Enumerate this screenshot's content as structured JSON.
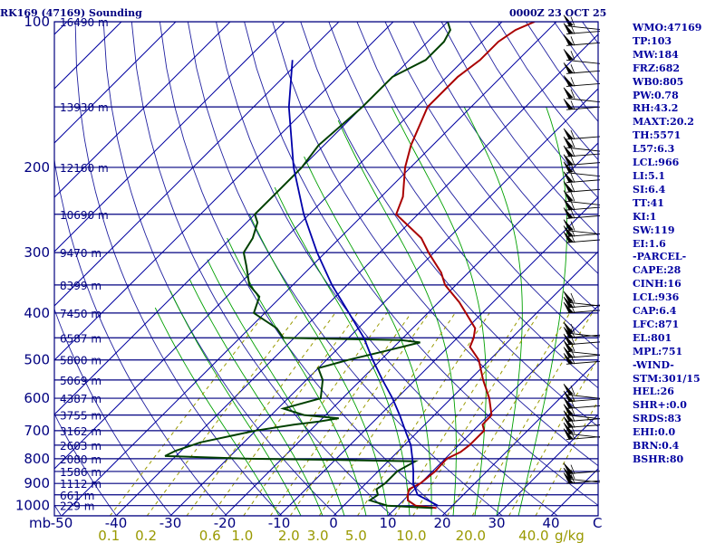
{
  "header": {
    "station": "RK169 (47169) Sounding",
    "time": "0000Z 23 OCT 25"
  },
  "indices": [
    "WMO:47169",
    "TP:103",
    "MW:184",
    "FRZ:682",
    "WB0:805",
    "PW:0.78",
    "RH:43.2",
    "MAXT:20.2",
    "TH:5571",
    "L57:6.3",
    "LCL:966",
    "LI:5.1",
    "SI:6.4",
    "TT:41",
    "KI:1",
    "SW:119",
    "EI:1.6",
    "-PARCEL-",
    "CAPE:28",
    "CINH:16",
    "LCL:936",
    "CAP:6.4",
    "LFC:871",
    "EL:801",
    "MPL:751",
    "-WIND-",
    "STM:301/15",
    "HEL:26",
    "SHR+:0.0",
    "SRDS:83",
    "EHI:0.0",
    "BRN:0.4",
    "BSHR:80"
  ],
  "colors": {
    "isobar": "#000080",
    "isotherm": "#0000a0",
    "dry_adiabat": "#2020a0",
    "moist_adiabat": "#00a000",
    "mixing_ratio": "#999900",
    "temperature": "#aa0000",
    "dewpoint": "#004000",
    "parcel": "#0000aa",
    "wind": "#000000"
  },
  "chart_data": {
    "type": "line",
    "title": "RK169 (47169) Sounding",
    "pressure_unit": "mb",
    "pressure_levels": [
      1000,
      900,
      800,
      700,
      600,
      500,
      400,
      300,
      200,
      100
    ],
    "temperature_ticks": [
      -50,
      -40,
      -30,
      -20,
      -10,
      0,
      10,
      20,
      30,
      40
    ],
    "temperature_unit": "C",
    "mixing_ratio_ticks": [
      0.1,
      0.2,
      0.6,
      1.0,
      2.0,
      3.0,
      5.0,
      10.0,
      20.0,
      40.0
    ],
    "mixing_ratio_tick_labels": [
      "0.1",
      "0.2",
      "0.6",
      "1.0",
      "2.0",
      "3.0",
      "5.0",
      "10.0",
      "20.0",
      "40.0"
    ],
    "mixing_ratio_unit": "g/kg",
    "height_labels": [
      {
        "p": 100,
        "label": "16490 m"
      },
      {
        "p": 150,
        "label": "13930 m"
      },
      {
        "p": 200,
        "label": "12160 m"
      },
      {
        "p": 250,
        "label": "10690 m"
      },
      {
        "p": 300,
        "label": "9470 m"
      },
      {
        "p": 350,
        "label": "8399 m"
      },
      {
        "p": 400,
        "label": "7450 m"
      },
      {
        "p": 450,
        "label": "6587 m"
      },
      {
        "p": 500,
        "label": "5800 m"
      },
      {
        "p": 550,
        "label": "5069 m"
      },
      {
        "p": 600,
        "label": "4387 m"
      },
      {
        "p": 650,
        "label": "3755 m"
      },
      {
        "p": 700,
        "label": "3162 m"
      },
      {
        "p": 750,
        "label": "2603 m"
      },
      {
        "p": 800,
        "label": "2080 m"
      },
      {
        "p": 850,
        "label": "1586 m"
      },
      {
        "p": 900,
        "label": "1112 m"
      },
      {
        "p": 950,
        "label": "661 m"
      },
      {
        "p": 1000,
        "label": "229 m"
      }
    ],
    "series": [
      {
        "key": "temperature",
        "p": [
          1012,
          1000,
          975,
          950,
          925,
          900,
          850,
          800,
          775,
          750,
          700,
          680,
          650,
          600,
          550,
          500,
          470,
          450,
          430,
          400,
          380,
          350,
          330,
          300,
          280,
          250,
          230,
          200,
          180,
          150,
          130,
          120,
          110,
          104,
          100
        ],
        "t": [
          17.5,
          13.2,
          10.8,
          9.8,
          9.0,
          10.0,
          10.5,
          10.3,
          11.6,
          12.0,
          12.0,
          10.6,
          10.5,
          7.0,
          2.5,
          -2.0,
          -6.0,
          -7.0,
          -8.5,
          -13.0,
          -16.2,
          -22.0,
          -25.0,
          -31.0,
          -35.0,
          -44.0,
          -46.0,
          -51.0,
          -54.0,
          -58.0,
          -58.0,
          -57.0,
          -57.0,
          -56.0,
          -54.0
        ]
      },
      {
        "key": "dewpoint",
        "p": [
          1012,
          1000,
          975,
          950,
          925,
          900,
          850,
          810,
          805,
          800,
          790,
          770,
          740,
          700,
          680,
          670,
          660,
          650,
          630,
          600,
          550,
          520,
          500,
          480,
          460,
          455,
          450,
          430,
          400,
          370,
          350,
          320,
          300,
          280,
          260,
          250,
          230,
          200,
          180,
          150,
          130,
          120,
          110,
          104,
          100
        ],
        "t": [
          16.8,
          8.0,
          3.8,
          4.3,
          3.0,
          3.5,
          3.5,
          5.0,
          -9.0,
          -26.0,
          -42.0,
          -41.0,
          -38.0,
          -30.0,
          -24.0,
          -20.0,
          -17.0,
          -24.0,
          -29.0,
          -24.0,
          -27.0,
          -30.0,
          -26.0,
          -21.0,
          -16.0,
          -20.0,
          -42.0,
          -45.0,
          -52.0,
          -54.0,
          -58.0,
          -62.0,
          -65.0,
          -66.0,
          -68.0,
          -70.0,
          -70.0,
          -70.0,
          -71.0,
          -70.0,
          -70.0,
          -67.0,
          -67.0,
          -68.0,
          -70.0
        ]
      },
      {
        "key": "parcel",
        "p": [
          1000,
          950,
          900,
          850,
          800,
          750,
          700,
          650,
          600,
          550,
          500,
          450,
          400,
          350,
          300,
          250,
          200,
          150,
          120
        ],
        "t": [
          17.3,
          11.6,
          8.7,
          6.5,
          4.0,
          1.2,
          -2.5,
          -6.4,
          -10.8,
          -16.0,
          -21.5,
          -27.2,
          -34.5,
          -42.8,
          -51.5,
          -61.0,
          -71.5,
          -83.5,
          -91.5
        ]
      }
    ],
    "wind_barb_levels": [
      102,
      106,
      112,
      120,
      128,
      136,
      144,
      152,
      175,
      182,
      190,
      198,
      205,
      215,
      225,
      235,
      245,
      255,
      270,
      278,
      286,
      380,
      390,
      400,
      440,
      450,
      465,
      480,
      495,
      510,
      590,
      610,
      630,
      650,
      670,
      690,
      710,
      730,
      860,
      880,
      900
    ]
  }
}
